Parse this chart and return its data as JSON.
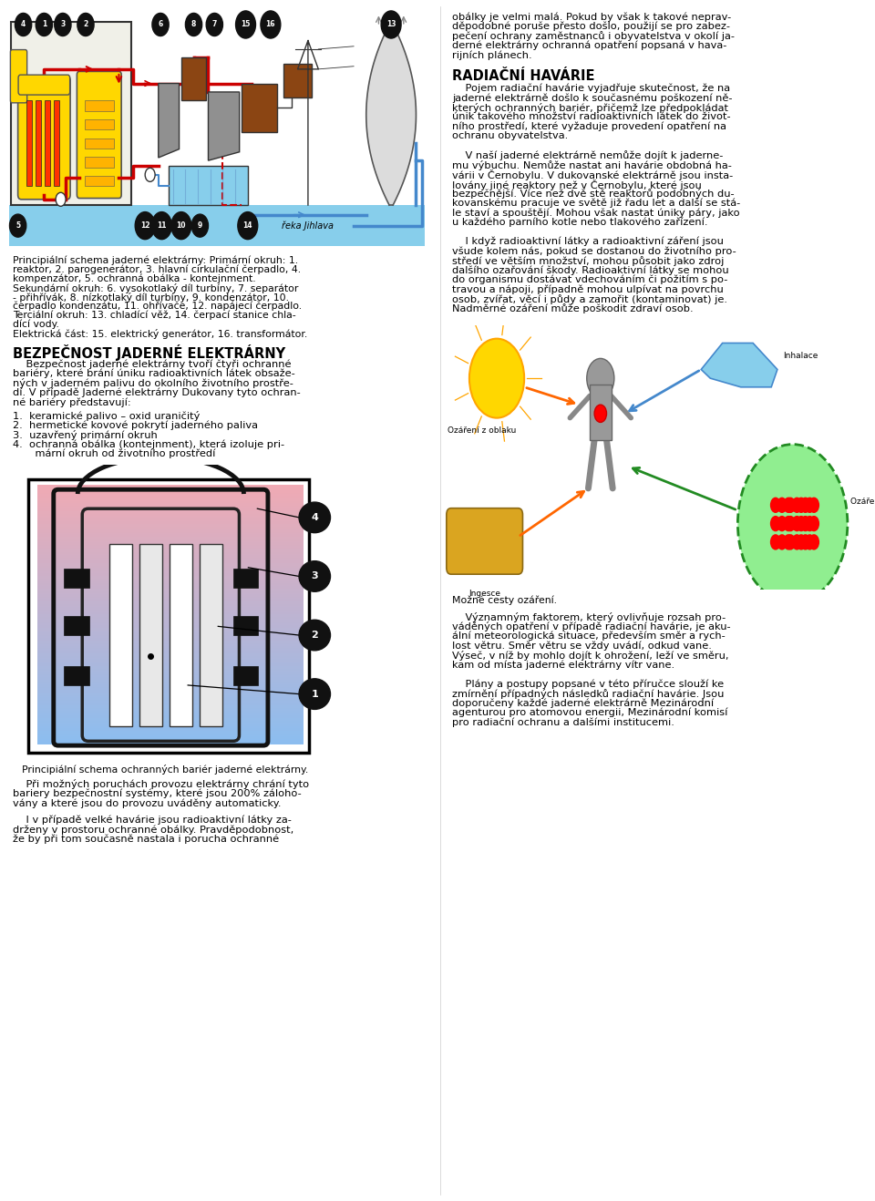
{
  "page_width": 9.6,
  "page_height": 13.18,
  "bg_color": "#ffffff",
  "top_diagram_desc_lines": [
    "Principiální schema jaderné elektrárny: Primární okruh: 1.",
    "reaktor, 2. parogenerátor, 3. hlavní cirkulační čerpadlo, 4.",
    "kompenzátor, 5. ochranná obálka - kontejnment.",
    "Sekundární okruh: 6. vysokotlaký díl turbíny, 7. separátor",
    "- přihřívák, 8. nízkotlaký díl turbíny, 9. kondenzátor, 10.",
    "čerpadlo kondenzátu, 11. ohřívače, 12. napájecí čerpadlo.",
    "Terciální okruh: 13. chladící věž, 14. čerpací stanice chla-",
    "dící vody.",
    "Elektrická část: 15. elektrický generátor, 16. transformátor."
  ],
  "section_title": "BEZPEČNOST JADERNÉ ELEKTRÁRNY",
  "section_body_lines": [
    "    Bezpečnost jaderné elektrárny tvoří čtyři ochranné",
    "bariéry, které brání úniku radioaktivních látek obsaže-",
    "ných v jaderném palivu do okolního životního prostře-",
    "dí. V případě Jaderné elektrárny Dukovany tyto ochran-",
    "né bariéry představují:"
  ],
  "list_items": [
    "1.  keramické palivo – oxid uraničitý",
    "2.  hermetické kovové pokrytí jaderného paliva",
    "3.  uzavřený primární okruh",
    "4.  ochranná obálka (kontejnment), která izoluje pri-",
    "    mární okruh od životního prostředí"
  ],
  "barrier_caption": "Principiální schema ochranných bariér jaderné elektrárny.",
  "para1_lines": [
    "    Při možných poruchách provozu elektrárny chrání tyto",
    "bariery bezpečnostní systémy, které jsou 200% záloho-",
    "vány a které jsou do provozu uváděny automaticky."
  ],
  "para2_lines": [
    "    I v případě velké havárie jsou radioaktivní látky za-",
    "drženy v prostoru ochranné obálky. Pravděpodobnost,",
    "že by při tom současně nastala i porucha ochranné"
  ],
  "right_top_lines": [
    "obálky je velmi malá. Pokud by však k takové neprav-",
    "děpodobné poruše přesto došlo, použijí se pro zabez-",
    "pečení ochrany zaměstnanců i obyvatelstva v okolí ja-",
    "derné elektrárny ochranná opatření popsaná v hava-",
    "rijních plánech."
  ],
  "right_col_title": "RADIAČNÍ HAVÁRIE",
  "right_para1_lines": [
    "    Pojem radiační havárie vyjadřuje skutečnost, že na",
    "jaderné elektrárně došlo k současnému poškození ně-",
    "kterých ochranných bariér, přičemž lze předpokládat",
    "únik takového množství radioaktivních látek do život-",
    "ního prostředí, které vyžaduje provedení opatření na",
    "ochranu obyvatelstva."
  ],
  "right_para2_lines": [
    "    V naší jaderné elektrárně nemůže dojít k jaderne-",
    "mu výbuchu. Nemůže nastat ani havárie obdobná ha-",
    "várii v Černobylu. V dukovanské elektrárně jsou insta-",
    "lovány jiné reaktory než v Černobylu, které jsou",
    "bezpečnější. Více než dvě stě reaktorů podobných du-",
    "kovanskému pracuje ve světě již řadu let a další se stá-",
    "le staví a spouštějí. Mohou však nastat úniky páry, jako",
    "u každého parního kotle nebo tlakového zařízení."
  ],
  "right_para3_lines": [
    "    I když radioaktivní látky a radioaktivní záření jsou",
    "všude kolem nás, pokud se dostanou do životního pro-",
    "středí ve větším množství, mohou působit jako zdroj",
    "dalšího ozařování škody. Radioaktivní látky se mohou",
    "do organismu dostávat vdechováním či požitím s po-",
    "travou a nápoji, případně mohou ulpívat na povrchu",
    "osob, zvířat, věcí i půdy a zamořit (kontaminovat) je.",
    "Nadměrné ozáření může poškodit zdraví osob."
  ],
  "right_radiation_caption": "Možné cesty ozáření.",
  "right_para4_lines": [
    "    Významným faktorem, který ovlivňuje rozsah pro-",
    "váděných opatření v případě radiační havárie, je aku-",
    "ální meteorologická situace, především směr a rych-",
    "lost větru. Směr větru se vždy uvádí, odkud vane.",
    "Výseč, v níž by mohlo dojít k ohrožení, leží ve směru,",
    "kam od místa jaderné elektrárny vítr vane."
  ],
  "right_para5_lines": [
    "    Plány a postupy popsané v této příručce slouží ke",
    "zmírnění případných následků radiační havárie. Jsou",
    "doporučeny každé jaderné elektrárně Mezinárodní",
    "agenturou pro atomovou energii, Mezinárodní komisí",
    "pro radiační ochranu a dalšími institucemi."
  ]
}
